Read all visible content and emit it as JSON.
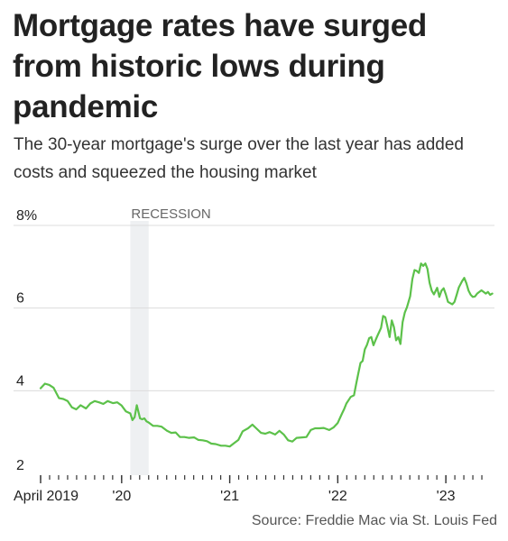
{
  "title": "Mortgage rates have surged from historic lows during pandemic",
  "subtitle": "The 30-year mortgage's surge over the last year has added costs and squeezed the housing market",
  "source": "Source: Freddie Mac via St. Louis Fed",
  "colors": {
    "line": "#5cc14a",
    "grid": "#dcdcdc",
    "recession": "#eef0f2",
    "text": "#222222",
    "muted": "#666666"
  },
  "chart_data": {
    "type": "line",
    "title": "Mortgage rates have surged from historic lows during pandemic",
    "subtitle": "The 30-year mortgage's surge over the last year has added costs and squeezed the housing market",
    "xlabel": "",
    "ylabel": "",
    "xlim": [
      2019.25,
      2023.45
    ],
    "ylim": [
      2,
      8
    ],
    "yticks": [
      {
        "value": 2,
        "label": "2"
      },
      {
        "value": 4,
        "label": "4"
      },
      {
        "value": 6,
        "label": "6"
      },
      {
        "value": 8,
        "label": "8%"
      }
    ],
    "xticks": [
      {
        "value": 2019.25,
        "label": "April 2019"
      },
      {
        "value": 2020.0,
        "label": "'20"
      },
      {
        "value": 2021.0,
        "label": "'21"
      },
      {
        "value": 2022.0,
        "label": "'22"
      },
      {
        "value": 2023.0,
        "label": "'23"
      }
    ],
    "grid": true,
    "annotations": [
      {
        "type": "band",
        "label": "RECESSION",
        "x_start": 2020.08,
        "x_end": 2020.25
      }
    ],
    "series": [
      {
        "x": [
          2019.25,
          2019.29,
          2019.33,
          2019.37,
          2019.42,
          2019.46,
          2019.5,
          2019.54,
          2019.58,
          2019.62,
          2019.67,
          2019.71,
          2019.75,
          2019.79,
          2019.83,
          2019.87,
          2019.92,
          2019.96,
          2020.0,
          2020.04,
          2020.08,
          2020.1,
          2020.12,
          2020.14,
          2020.17,
          2020.19,
          2020.21,
          2020.23,
          2020.25,
          2020.29,
          2020.33,
          2020.37,
          2020.42,
          2020.46,
          2020.5,
          2020.54,
          2020.58,
          2020.62,
          2020.67,
          2020.71,
          2020.75,
          2020.79,
          2020.83,
          2020.87,
          2020.92,
          2020.96,
          2021.0,
          2021.04,
          2021.08,
          2021.12,
          2021.17,
          2021.21,
          2021.25,
          2021.29,
          2021.33,
          2021.37,
          2021.42,
          2021.46,
          2021.5,
          2021.54,
          2021.58,
          2021.62,
          2021.67,
          2021.71,
          2021.75,
          2021.79,
          2021.83,
          2021.87,
          2021.92,
          2021.96,
          2022.0,
          2022.04,
          2022.06,
          2022.08,
          2022.12,
          2022.15,
          2022.17,
          2022.19,
          2022.21,
          2022.23,
          2022.25,
          2022.27,
          2022.29,
          2022.31,
          2022.33,
          2022.35,
          2022.37,
          2022.4,
          2022.42,
          2022.44,
          2022.46,
          2022.48,
          2022.5,
          2022.52,
          2022.54,
          2022.56,
          2022.58,
          2022.6,
          2022.62,
          2022.64,
          2022.67,
          2022.69,
          2022.71,
          2022.73,
          2022.75,
          2022.77,
          2022.79,
          2022.81,
          2022.83,
          2022.85,
          2022.87,
          2022.89,
          2022.92,
          2022.94,
          2022.96,
          2022.98,
          2023.0,
          2023.02,
          2023.04,
          2023.06,
          2023.08,
          2023.1,
          2023.12,
          2023.15,
          2023.17,
          2023.19,
          2023.21,
          2023.23,
          2023.25,
          2023.27,
          2023.29,
          2023.31,
          2023.33,
          2023.35,
          2023.37,
          2023.39,
          2023.41,
          2023.43
        ],
        "values": [
          4.06,
          4.17,
          4.14,
          4.07,
          3.82,
          3.8,
          3.75,
          3.6,
          3.55,
          3.65,
          3.57,
          3.69,
          3.75,
          3.72,
          3.68,
          3.75,
          3.7,
          3.72,
          3.64,
          3.5,
          3.45,
          3.29,
          3.36,
          3.65,
          3.33,
          3.31,
          3.33,
          3.26,
          3.23,
          3.15,
          3.15,
          3.13,
          3.03,
          2.98,
          2.99,
          2.88,
          2.88,
          2.86,
          2.87,
          2.81,
          2.8,
          2.78,
          2.72,
          2.71,
          2.67,
          2.67,
          2.65,
          2.73,
          2.81,
          3.02,
          3.09,
          3.18,
          3.08,
          2.98,
          2.96,
          3.0,
          2.94,
          3.03,
          2.94,
          2.8,
          2.77,
          2.86,
          2.87,
          2.88,
          3.05,
          3.09,
          3.09,
          3.1,
          3.05,
          3.11,
          3.22,
          3.45,
          3.56,
          3.69,
          3.85,
          3.89,
          4.16,
          4.42,
          4.67,
          4.72,
          5.0,
          5.11,
          5.27,
          5.3,
          5.1,
          5.23,
          5.35,
          5.52,
          5.81,
          5.78,
          5.55,
          5.3,
          5.7,
          5.54,
          5.22,
          5.3,
          5.13,
          5.66,
          5.89,
          6.02,
          6.29,
          6.7,
          6.92,
          6.9,
          6.85,
          7.08,
          7.02,
          7.08,
          6.95,
          6.61,
          6.42,
          6.33,
          6.49,
          6.27,
          6.42,
          6.48,
          6.33,
          6.15,
          6.12,
          6.09,
          6.15,
          6.32,
          6.5,
          6.65,
          6.73,
          6.6,
          6.42,
          6.32,
          6.27,
          6.28,
          6.35,
          6.39,
          6.43,
          6.39,
          6.35,
          6.39,
          6.32,
          6.35
        ]
      }
    ]
  }
}
